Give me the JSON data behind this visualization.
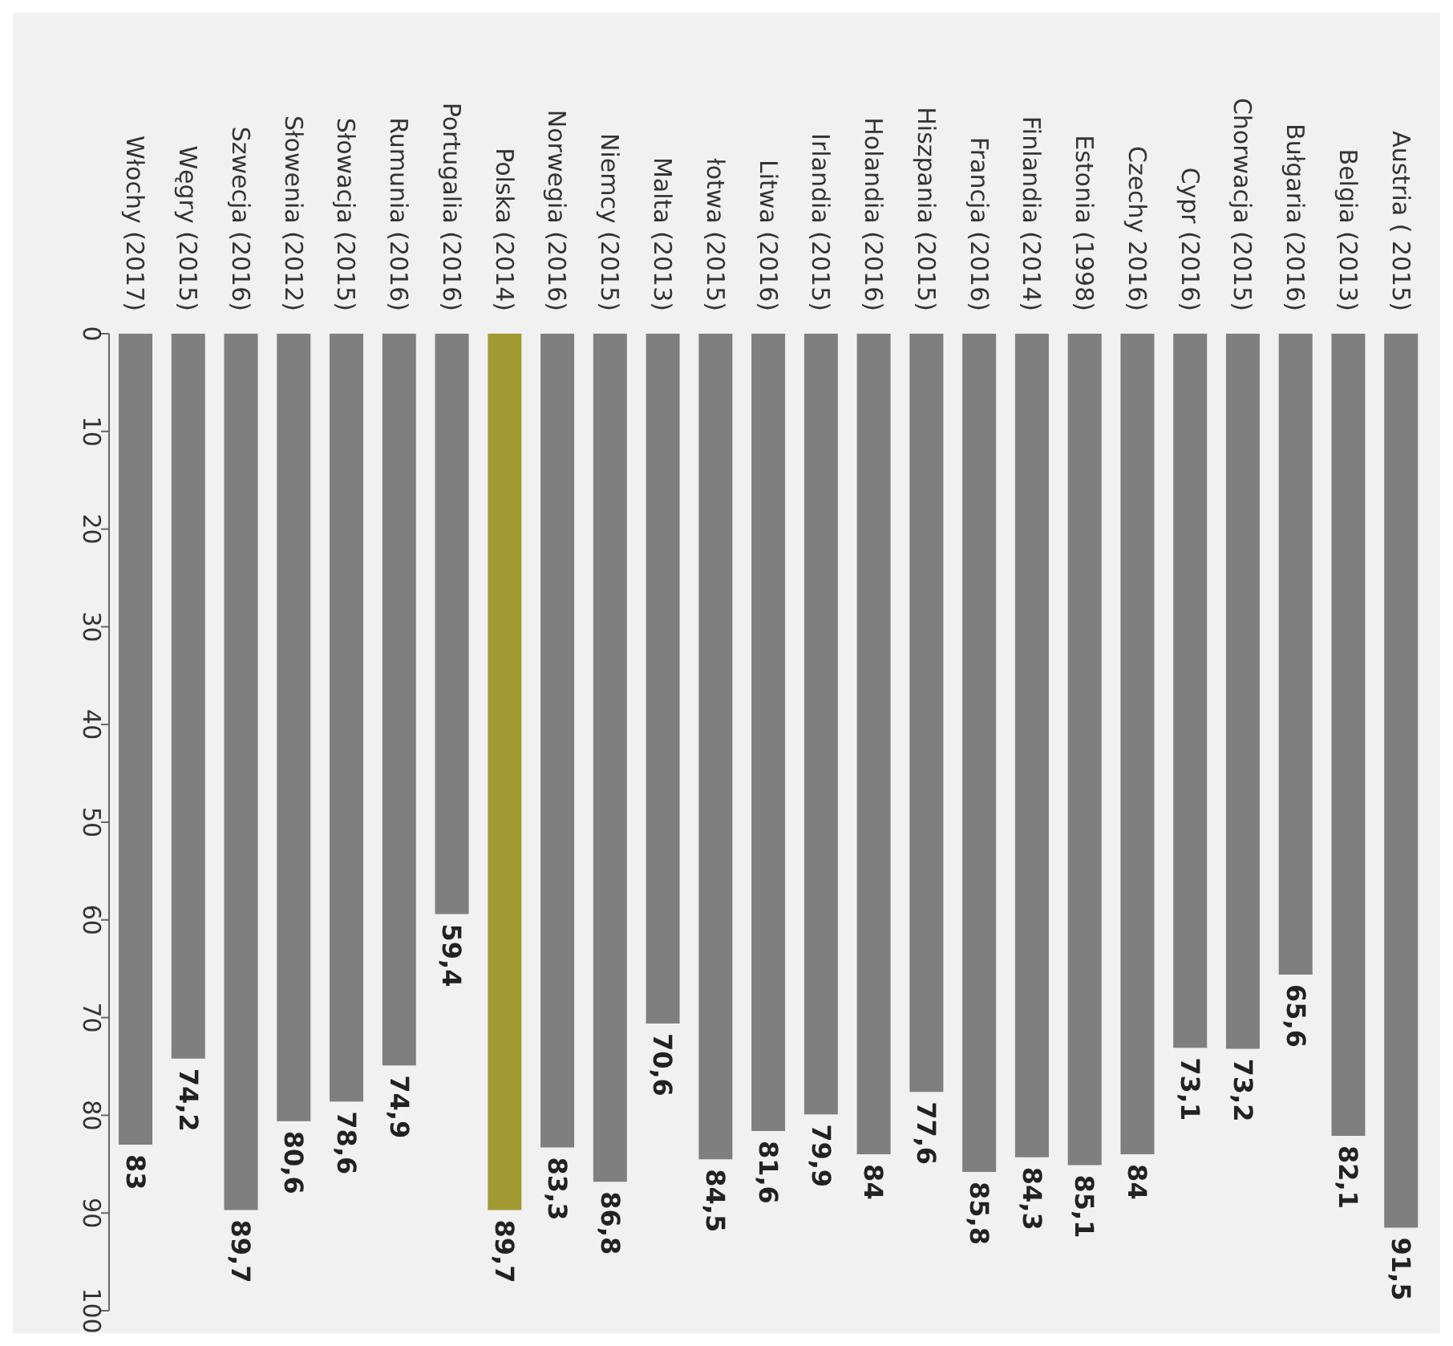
{
  "chart_data": {
    "type": "bar",
    "categories": [
      "Włochy (2017)",
      "Węgry (2015)",
      "Szwecja (2016)",
      "Słowenia (2012)",
      "Słowacja  (2015)",
      "Rumunia (2016)",
      "Portugalia (2016)",
      "Polska (2014)",
      "Norwegia (2016)",
      "Niemcy (2015)",
      "Malta (2013)",
      "łotwa (2015)",
      "Litwa (2016)",
      "Irlandia (2015)",
      "Holandia (2016)",
      "Hiszpania (2015)",
      "Francja (2016)",
      "Finlandia (2014)",
      "Estonia (1998)",
      "Czechy 2016)",
      "Cypr (2016)",
      "Chorwacja (2015)",
      "Bułgaria (2016)",
      "Belgia (2013)",
      "Austria ( 2015)"
    ],
    "values": [
      83,
      74.2,
      89.7,
      80.6,
      78.6,
      74.9,
      59.4,
      89.7,
      83.3,
      86.8,
      70.6,
      84.5,
      81.6,
      79.9,
      84,
      77.6,
      85.8,
      84.3,
      85.1,
      84,
      73.1,
      73.2,
      65.6,
      82.1,
      91.5
    ],
    "value_labels": [
      "83",
      "74,2",
      "89,7",
      "80,6",
      "78,6",
      "74,9",
      "59,4",
      "89,7",
      "83,3",
      "86,8",
      "70,6",
      "84,5",
      "81,6",
      "79,9",
      "84",
      "77,6",
      "85,8",
      "84,3",
      "85,1",
      "84",
      "73,1",
      "73,2",
      "65,6",
      "82,1",
      "91,5"
    ],
    "colors": [
      "#7f7f7f",
      "#7f7f7f",
      "#7f7f7f",
      "#7f7f7f",
      "#7f7f7f",
      "#7f7f7f",
      "#7f7f7f",
      "#a39a34",
      "#7f7f7f",
      "#7f7f7f",
      "#7f7f7f",
      "#7f7f7f",
      "#7f7f7f",
      "#7f7f7f",
      "#7f7f7f",
      "#7f7f7f",
      "#7f7f7f",
      "#7f7f7f",
      "#7f7f7f",
      "#7f7f7f",
      "#7f7f7f",
      "#7f7f7f",
      "#7f7f7f",
      "#7f7f7f",
      "#7f7f7f"
    ],
    "ylim": [
      100,
      0
    ],
    "yticks": [
      0,
      10,
      20,
      30,
      40,
      50,
      60,
      70,
      80,
      90,
      100
    ]
  }
}
